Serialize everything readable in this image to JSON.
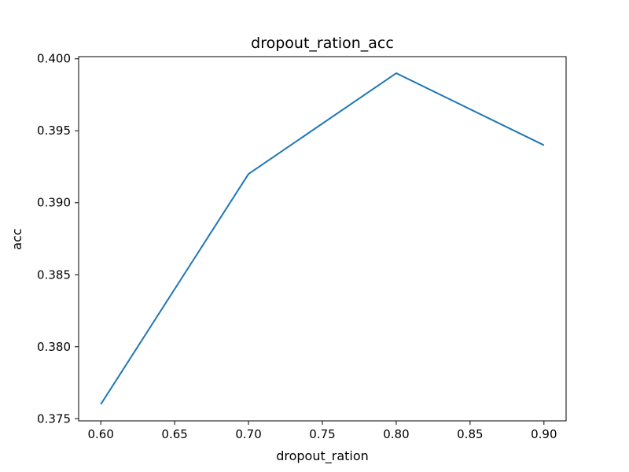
{
  "chart_data": {
    "type": "line",
    "title": "dropout_ration_acc",
    "xlabel": "dropout_ration",
    "ylabel": "acc",
    "x": [
      0.6,
      0.7,
      0.8,
      0.9
    ],
    "series": [
      {
        "values": [
          0.376,
          0.392,
          0.399,
          0.394
        ],
        "color": "#1f77b4"
      }
    ],
    "xlim": [
      0.585,
      0.915
    ],
    "ylim": [
      0.37485,
      0.40015
    ],
    "xticks": [
      0.6,
      0.65,
      0.7,
      0.75,
      0.8,
      0.85,
      0.9
    ],
    "xtick_labels": [
      "0.60",
      "0.65",
      "0.70",
      "0.75",
      "0.80",
      "0.85",
      "0.90"
    ],
    "yticks": [
      0.375,
      0.38,
      0.385,
      0.39,
      0.395,
      0.4
    ],
    "ytick_labels": [
      "0.375",
      "0.380",
      "0.385",
      "0.390",
      "0.395",
      "0.400"
    ],
    "grid": false,
    "legend": "none"
  }
}
